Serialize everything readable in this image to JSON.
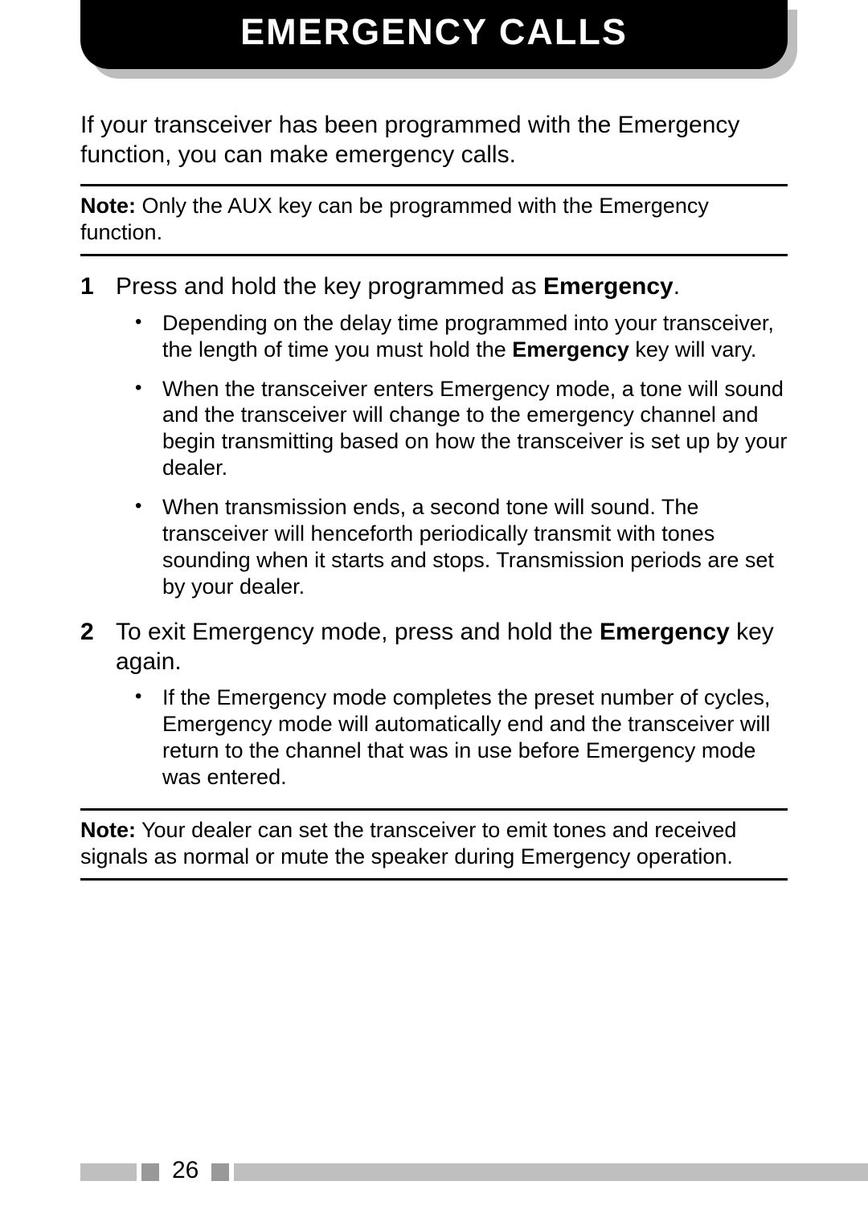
{
  "banner": {
    "title": "EMERGENCY CALLS"
  },
  "intro": "If your transceiver has been programmed with the Emergency function, you can make emergency calls.",
  "note1": {
    "label": "Note:",
    "text": "  Only the AUX key can be programmed with the Emergency function."
  },
  "steps": [
    {
      "num": "1",
      "text_pre": "Press and hold the key programmed as ",
      "text_bold": "Emergency",
      "text_post": ".",
      "bullets": [
        {
          "pre": "Depending on the delay time programmed into your transceiver, the length of time you must hold the ",
          "bold": "Emergency",
          "post": " key will vary."
        },
        {
          "pre": "When the transceiver enters Emergency mode, a tone will sound and the transceiver will change to the emergency channel and begin transmitting based on how the transceiver is set up by your dealer.",
          "bold": "",
          "post": ""
        },
        {
          "pre": "When transmission ends, a second tone will sound.  The transceiver will henceforth periodically transmit with tones sounding when it starts and stops.  Transmission periods are set by your dealer.",
          "bold": "",
          "post": ""
        }
      ]
    },
    {
      "num": "2",
      "text_pre": "To exit Emergency mode, press and hold the ",
      "text_bold": "Emergency",
      "text_post": " key again.",
      "bullets": [
        {
          "pre": "If the Emergency mode completes the preset number of cycles, Emergency mode will automatically end and the transceiver will return to the channel that was in use before Emergency mode was entered.",
          "bold": "",
          "post": ""
        }
      ]
    }
  ],
  "note2": {
    "label": "Note:",
    "text": "  Your dealer can set the transceiver to emit tones and received signals as normal or mute the speaker during Emergency operation."
  },
  "page_number": "26",
  "colors": {
    "black": "#000000",
    "white": "#ffffff",
    "gray_light": "#bfbfbf",
    "gray_mid": "#999999",
    "shadow": "#bdbdbd"
  }
}
